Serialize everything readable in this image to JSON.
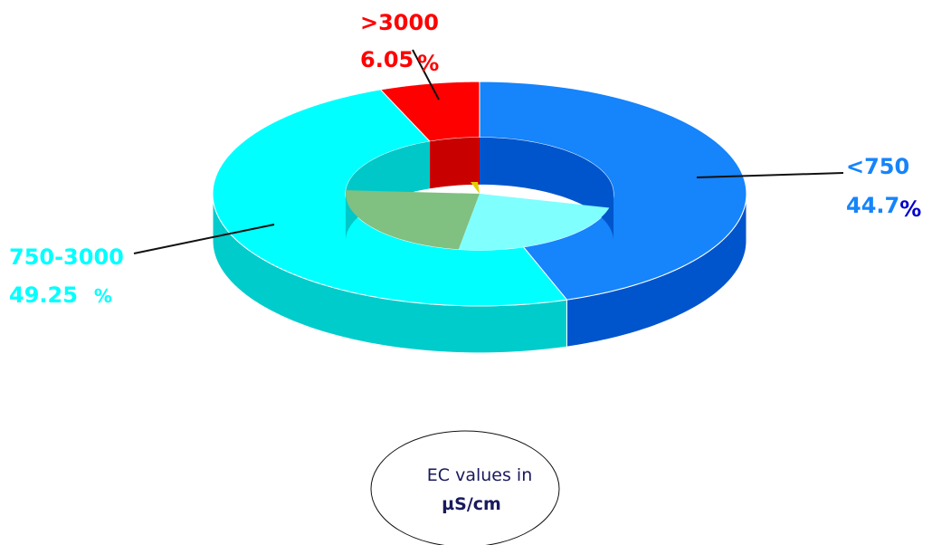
{
  "chart_data": {
    "type": "pie",
    "style": "3d-donut",
    "slices": [
      {
        "label": "<750",
        "value": 44.7,
        "value_text": "44.7",
        "percent_sign": "%",
        "color": "#1684fb",
        "side_color": "#0055cc",
        "inner_color": "#0055cc",
        "label_color": "#1684fb",
        "pct_color": "#0000cc"
      },
      {
        "label": "750-3000",
        "value": 49.25,
        "value_text": "49.25",
        "percent_sign": "%",
        "color": "#00ffff",
        "side_color": "#00cccc",
        "inner_color": "#00c8c8",
        "label_color": "#00ffff",
        "pct_color": "#00ffff"
      },
      {
        "label": ">3000",
        "value": 6.05,
        "value_text": "6.05",
        "percent_sign": "%",
        "color": "#ff0000",
        "side_color": "#c80000",
        "inner_color": "#c80000",
        "label_color": "#ff0000",
        "pct_color": "#ff0000"
      }
    ],
    "legend": {
      "line1": "EC values in",
      "line2": "µS/cm"
    }
  },
  "colors": {
    "hole_floor_left": "#80c080",
    "hole_floor_right": "#80ffff",
    "hole_floor_tip": "#e0d000",
    "leader_line": "#111111"
  }
}
